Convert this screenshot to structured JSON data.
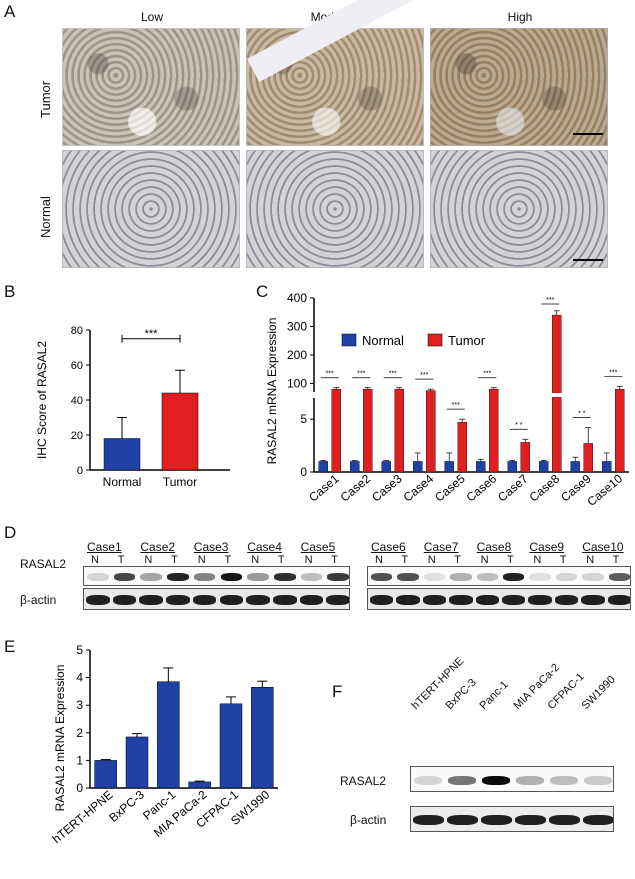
{
  "panel_labels": {
    "A": "A",
    "B": "B",
    "C": "C",
    "D": "D",
    "E": "E",
    "F": "F"
  },
  "panel_a": {
    "columns": [
      "Low",
      "Moderate",
      "High"
    ],
    "rows": [
      "Tumor",
      "Normal"
    ]
  },
  "chart_data": [
    {
      "type": "bar",
      "panel": "B",
      "categories": [
        "Normal",
        "Tumor"
      ],
      "values": [
        18,
        44
      ],
      "errors": [
        12,
        13
      ],
      "colors": [
        "#2042a8",
        "#e02020"
      ],
      "ylabel": "IHC Score of RASAL2",
      "ylim": [
        0,
        80
      ],
      "yticks": [
        "0",
        "20",
        "40",
        "60",
        "80"
      ],
      "annotation": "***"
    },
    {
      "type": "bar",
      "panel": "C",
      "categories": [
        "Case1",
        "Case2",
        "Case3",
        "Case4",
        "Case5",
        "Case6",
        "Case7",
        "Case8",
        "Case9",
        "Case10"
      ],
      "series": [
        {
          "name": "Normal",
          "values": [
            1,
            1,
            1,
            1,
            1,
            1,
            1,
            1,
            1,
            1
          ],
          "errors": [
            0.1,
            0.1,
            0.1,
            0.8,
            0.8,
            0.2,
            0.1,
            0.1,
            0.4,
            0.8
          ],
          "color": "#2042a8"
        },
        {
          "name": "Tumor",
          "values": [
            80,
            80,
            80,
            75,
            4.7,
            80,
            2.8,
            340,
            2.7,
            80
          ],
          "errors": [
            5,
            5,
            5,
            5,
            0.3,
            5,
            0.3,
            15,
            1.5,
            10
          ],
          "color": "#e02020"
        }
      ],
      "ylabel": "RASAL2 mRNA Expression",
      "broken_axis": {
        "lower": [
          0,
          7
        ],
        "upper": [
          70,
          400
        ]
      },
      "yticks_lower": [
        "0",
        "5"
      ],
      "yticks_upper": [
        "100",
        "200",
        "300",
        "400"
      ],
      "annotations": [
        "***",
        "***",
        "***",
        "***",
        "***",
        "***",
        "* *",
        "***",
        "* *",
        "***"
      ]
    },
    {
      "type": "bar",
      "panel": "E",
      "categories": [
        "hTERT-HPNE",
        "BxPC-3",
        "Panc-1",
        "MIA PaCa-2",
        "CFPAC-1",
        "SW1990"
      ],
      "values": [
        1.0,
        1.85,
        3.85,
        0.22,
        3.05,
        3.65
      ],
      "errors": [
        0.03,
        0.12,
        0.5,
        0.03,
        0.25,
        0.22
      ],
      "color": "#2042a8",
      "ylabel": "RASAL2 mRNA Expression",
      "ylim": [
        0,
        5
      ],
      "yticks": [
        "0",
        "1",
        "2",
        "3",
        "4",
        "5"
      ]
    }
  ],
  "panel_d": {
    "cases_left": [
      "Case1",
      "Case2",
      "Case3",
      "Case4",
      "Case5"
    ],
    "cases_right": [
      "Case6",
      "Case7",
      "Case8",
      "Case9",
      "Case10"
    ],
    "n": "N",
    "t": "T",
    "row1": "RASAL2",
    "row2": "β-actin"
  },
  "panel_f": {
    "cells": [
      "hTERT-HPNE",
      "BxPC-3",
      "Panc-1",
      "MIA PaCa-2",
      "CFPAC-1",
      "SW1990"
    ],
    "row1": "RASAL2",
    "row2": "β-actin"
  }
}
